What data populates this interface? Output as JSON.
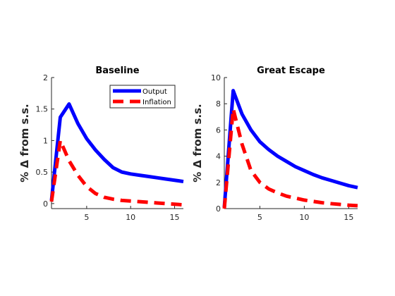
{
  "chart_data": [
    {
      "type": "line",
      "title": "Baseline",
      "ylabel": "% Δ from s.s.",
      "xlabel": "",
      "xlim": [
        1,
        16
      ],
      "ylim": [
        -0.08,
        2
      ],
      "xticks": [
        5,
        10,
        15
      ],
      "yticks": [
        0,
        0.5,
        1,
        1.5,
        2
      ],
      "xtick_labels": [
        "5",
        "10",
        "15"
      ],
      "ytick_labels": [
        "0",
        "0.5",
        "1",
        "1.5",
        "2"
      ],
      "legend": {
        "location": "top-right",
        "entries": [
          "Output",
          "Inflation"
        ]
      },
      "x": [
        1,
        2,
        3,
        4,
        5,
        6,
        7,
        8,
        9,
        10,
        11,
        12,
        13,
        14,
        15,
        16
      ],
      "series": [
        {
          "name": "Output",
          "color": "#0000ff",
          "style": "solid",
          "values": [
            0.05,
            1.37,
            1.58,
            1.27,
            1.03,
            0.85,
            0.7,
            0.57,
            0.5,
            0.47,
            0.45,
            0.43,
            0.41,
            0.39,
            0.37,
            0.35
          ]
        },
        {
          "name": "Inflation",
          "color": "#ff0000",
          "style": "dashed",
          "values": [
            0.03,
            1.0,
            0.68,
            0.45,
            0.27,
            0.16,
            0.1,
            0.07,
            0.05,
            0.04,
            0.03,
            0.02,
            0.01,
            0.0,
            -0.01,
            -0.02
          ]
        }
      ]
    },
    {
      "type": "line",
      "title": "Great Escape",
      "ylabel": "% Δ from s.s.",
      "xlabel": "",
      "xlim": [
        1,
        16
      ],
      "ylim": [
        0,
        10
      ],
      "xticks": [
        5,
        10,
        15
      ],
      "yticks": [
        0,
        2,
        4,
        6,
        8,
        10
      ],
      "xtick_labels": [
        "5",
        "10",
        "15"
      ],
      "ytick_labels": [
        "0",
        "2",
        "4",
        "6",
        "8",
        "10"
      ],
      "x": [
        1,
        2,
        3,
        4,
        5,
        6,
        7,
        8,
        9,
        10,
        11,
        12,
        13,
        14,
        15,
        16
      ],
      "series": [
        {
          "name": "Output",
          "color": "#0000ff",
          "style": "solid",
          "values": [
            0.1,
            9.0,
            7.2,
            6.0,
            5.1,
            4.5,
            4.0,
            3.6,
            3.2,
            2.9,
            2.6,
            2.35,
            2.15,
            1.95,
            1.75,
            1.6
          ]
        },
        {
          "name": "Inflation",
          "color": "#ff0000",
          "style": "dashed",
          "values": [
            0.0,
            7.6,
            4.9,
            2.9,
            2.0,
            1.5,
            1.2,
            0.95,
            0.8,
            0.65,
            0.55,
            0.45,
            0.38,
            0.32,
            0.26,
            0.22
          ]
        }
      ]
    }
  ]
}
